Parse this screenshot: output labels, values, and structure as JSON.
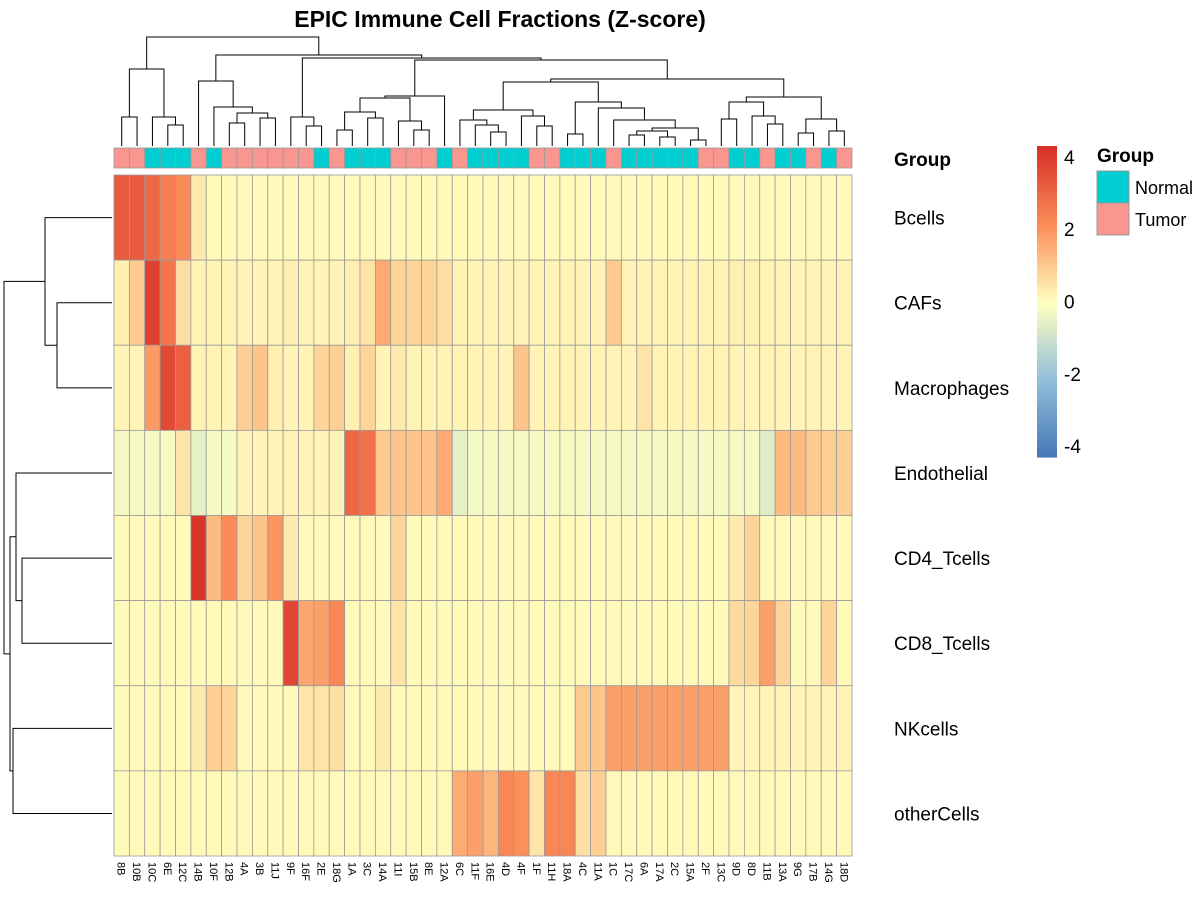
{
  "chart_data": {
    "type": "heatmap",
    "title": "EPIC Immune Cell Fractions (Z-score)",
    "columns": [
      "8B",
      "10B",
      "10C",
      "6E",
      "12C",
      "14B",
      "10F",
      "12B",
      "4A",
      "3B",
      "11J",
      "9F",
      "16F",
      "2E",
      "18G",
      "1A",
      "3C",
      "14A",
      "11I",
      "15B",
      "8E",
      "12A",
      "6C",
      "11F",
      "16E",
      "4D",
      "4F",
      "1F",
      "11H",
      "18A",
      "4C",
      "11A",
      "1C",
      "17C",
      "6A",
      "17A",
      "2C",
      "15A",
      "2F",
      "13C",
      "9D",
      "8D",
      "11B",
      "13A",
      "9G",
      "17B",
      "14G",
      "18D"
    ],
    "rows": [
      "Bcells",
      "CAFs",
      "Macrophages",
      "Endothelial",
      "CD4_Tcells",
      "CD8_Tcells",
      "NKcells",
      "otherCells"
    ],
    "group_annotation": {
      "label": "Group",
      "values": [
        "Tumor",
        "Tumor",
        "Normal",
        "Normal",
        "Normal",
        "Tumor",
        "Normal",
        "Tumor",
        "Tumor",
        "Tumor",
        "Tumor",
        "Tumor",
        "Tumor",
        "Normal",
        "Tumor",
        "Normal",
        "Normal",
        "Normal",
        "Tumor",
        "Tumor",
        "Tumor",
        "Normal",
        "Tumor",
        "Normal",
        "Normal",
        "Normal",
        "Normal",
        "Tumor",
        "Tumor",
        "Normal",
        "Normal",
        "Normal",
        "Tumor",
        "Normal",
        "Normal",
        "Normal",
        "Normal",
        "Normal",
        "Tumor",
        "Tumor",
        "Normal",
        "Normal",
        "Tumor",
        "Normal",
        "Normal",
        "Tumor",
        "Normal",
        "Tumor"
      ]
    },
    "values": [
      [
        3.3,
        3.3,
        3.0,
        2.5,
        2.2,
        0.4,
        0.1,
        0.1,
        0.1,
        0.1,
        0.1,
        0.1,
        0.1,
        0.1,
        0.1,
        0.1,
        0.1,
        0.1,
        0.1,
        0.1,
        0.1,
        0.1,
        0.1,
        0.1,
        0.1,
        0.1,
        0.1,
        0.1,
        0.1,
        0.1,
        0.1,
        0.1,
        0.1,
        0.1,
        0.1,
        0.1,
        0.1,
        0.1,
        0.1,
        0.1,
        0.1,
        0.1,
        0.1,
        0.1,
        0.1,
        0.1,
        0.1,
        0.1
      ],
      [
        0.3,
        1.0,
        3.9,
        2.7,
        0.6,
        0.2,
        0.2,
        0.2,
        0.2,
        0.2,
        0.2,
        0.3,
        0.2,
        0.2,
        0.2,
        0.3,
        0.5,
        1.6,
        0.8,
        0.8,
        0.8,
        0.6,
        0.2,
        0.2,
        0.2,
        0.2,
        0.2,
        0.2,
        0.2,
        0.2,
        0.2,
        0.2,
        1.0,
        0.2,
        0.2,
        0.2,
        0.2,
        0.2,
        0.2,
        0.2,
        0.3,
        0.3,
        0.2,
        0.2,
        0.2,
        0.2,
        0.2,
        0.2
      ],
      [
        0.2,
        0.2,
        1.9,
        3.7,
        3.2,
        0.2,
        0.2,
        0.2,
        0.9,
        1.1,
        0.3,
        0.2,
        0.2,
        0.8,
        0.9,
        0.3,
        0.8,
        0.2,
        0.4,
        0.2,
        0.2,
        0.2,
        0.2,
        0.2,
        0.2,
        0.2,
        1.1,
        0.2,
        0.2,
        0.2,
        0.2,
        0.2,
        0.2,
        0.2,
        0.5,
        0.2,
        0.2,
        0.2,
        0.2,
        0.2,
        0.2,
        0.2,
        0.2,
        0.2,
        0.2,
        0.2,
        0.2,
        0.2
      ],
      [
        -0.2,
        -0.2,
        -0.2,
        -0.2,
        0.5,
        -0.5,
        -0.2,
        -0.2,
        0.2,
        0.2,
        0.2,
        0.2,
        0.2,
        0.2,
        0.2,
        3.0,
        2.8,
        1.0,
        1.1,
        1.1,
        1.1,
        1.6,
        -0.5,
        -0.2,
        -0.2,
        -0.2,
        -0.2,
        -0.2,
        -0.2,
        -0.2,
        -0.2,
        -0.2,
        -0.2,
        -0.2,
        -0.2,
        -0.2,
        -0.2,
        -0.2,
        -0.2,
        -0.2,
        -0.2,
        -0.2,
        -0.6,
        1.3,
        1.3,
        1.0,
        0.9,
        0.9
      ],
      [
        0.1,
        0.1,
        0.1,
        0.1,
        0.1,
        4.2,
        1.3,
        2.2,
        0.8,
        1.1,
        2.0,
        0.4,
        0.1,
        0.1,
        0.1,
        0.1,
        0.1,
        0.1,
        0.8,
        0.1,
        0.1,
        0.1,
        0.1,
        0.1,
        0.1,
        0.1,
        0.1,
        0.1,
        0.1,
        0.1,
        0.1,
        0.1,
        0.1,
        0.1,
        0.1,
        0.1,
        0.1,
        0.1,
        0.1,
        0.1,
        0.4,
        0.8,
        0.1,
        0.1,
        0.1,
        0.1,
        0.1,
        0.1
      ],
      [
        0.1,
        0.1,
        0.1,
        0.1,
        0.1,
        0.1,
        0.1,
        0.1,
        0.1,
        0.1,
        0.1,
        3.8,
        1.7,
        1.8,
        2.3,
        0.1,
        0.1,
        0.1,
        0.5,
        0.1,
        0.1,
        0.1,
        0.1,
        0.1,
        0.1,
        0.1,
        0.1,
        0.1,
        0.1,
        0.1,
        0.1,
        0.1,
        0.1,
        0.1,
        0.1,
        0.1,
        0.1,
        0.1,
        0.1,
        0.1,
        0.7,
        0.8,
        1.8,
        0.8,
        0.1,
        0.1,
        0.8,
        0.1
      ],
      [
        0.1,
        0.1,
        0.1,
        0.1,
        0.1,
        0.4,
        0.9,
        0.8,
        0.1,
        0.1,
        0.1,
        0.1,
        0.5,
        0.5,
        0.6,
        0.1,
        0.1,
        0.4,
        0.1,
        0.1,
        0.1,
        0.1,
        0.1,
        0.1,
        0.1,
        0.1,
        0.1,
        0.1,
        0.1,
        0.1,
        1.0,
        1.1,
        1.8,
        1.8,
        1.8,
        1.8,
        1.8,
        1.8,
        1.8,
        1.8,
        0.2,
        0.2,
        0.2,
        0.2,
        0.2,
        0.2,
        0.2,
        0.2
      ],
      [
        0.1,
        0.1,
        0.1,
        0.1,
        0.1,
        0.1,
        0.1,
        0.1,
        0.1,
        0.1,
        0.1,
        0.1,
        0.1,
        0.1,
        0.1,
        0.1,
        0.1,
        0.1,
        0.1,
        0.1,
        0.1,
        0.1,
        1.6,
        1.8,
        1.4,
        2.3,
        2.1,
        0.5,
        2.3,
        2.3,
        0.6,
        0.9,
        0.1,
        0.1,
        0.1,
        0.1,
        0.1,
        0.1,
        0.1,
        0.1,
        0.1,
        0.1,
        0.1,
        0.1,
        0.1,
        0.1,
        0.1,
        0.1
      ]
    ],
    "colorbar": {
      "ticks": [
        4,
        2,
        0,
        -2,
        -4
      ],
      "range": [
        -4.3,
        4.3
      ]
    },
    "legend": {
      "title": "Group",
      "entries": [
        {
          "label": "Normal",
          "color": "#00ced1"
        },
        {
          "label": "Tumor",
          "color": "#f8968f"
        }
      ]
    },
    "colors": {
      "low": "#4575b4",
      "mid": "#ffffbf",
      "high": "#d73027",
      "grid": "#9a9a9a"
    }
  }
}
